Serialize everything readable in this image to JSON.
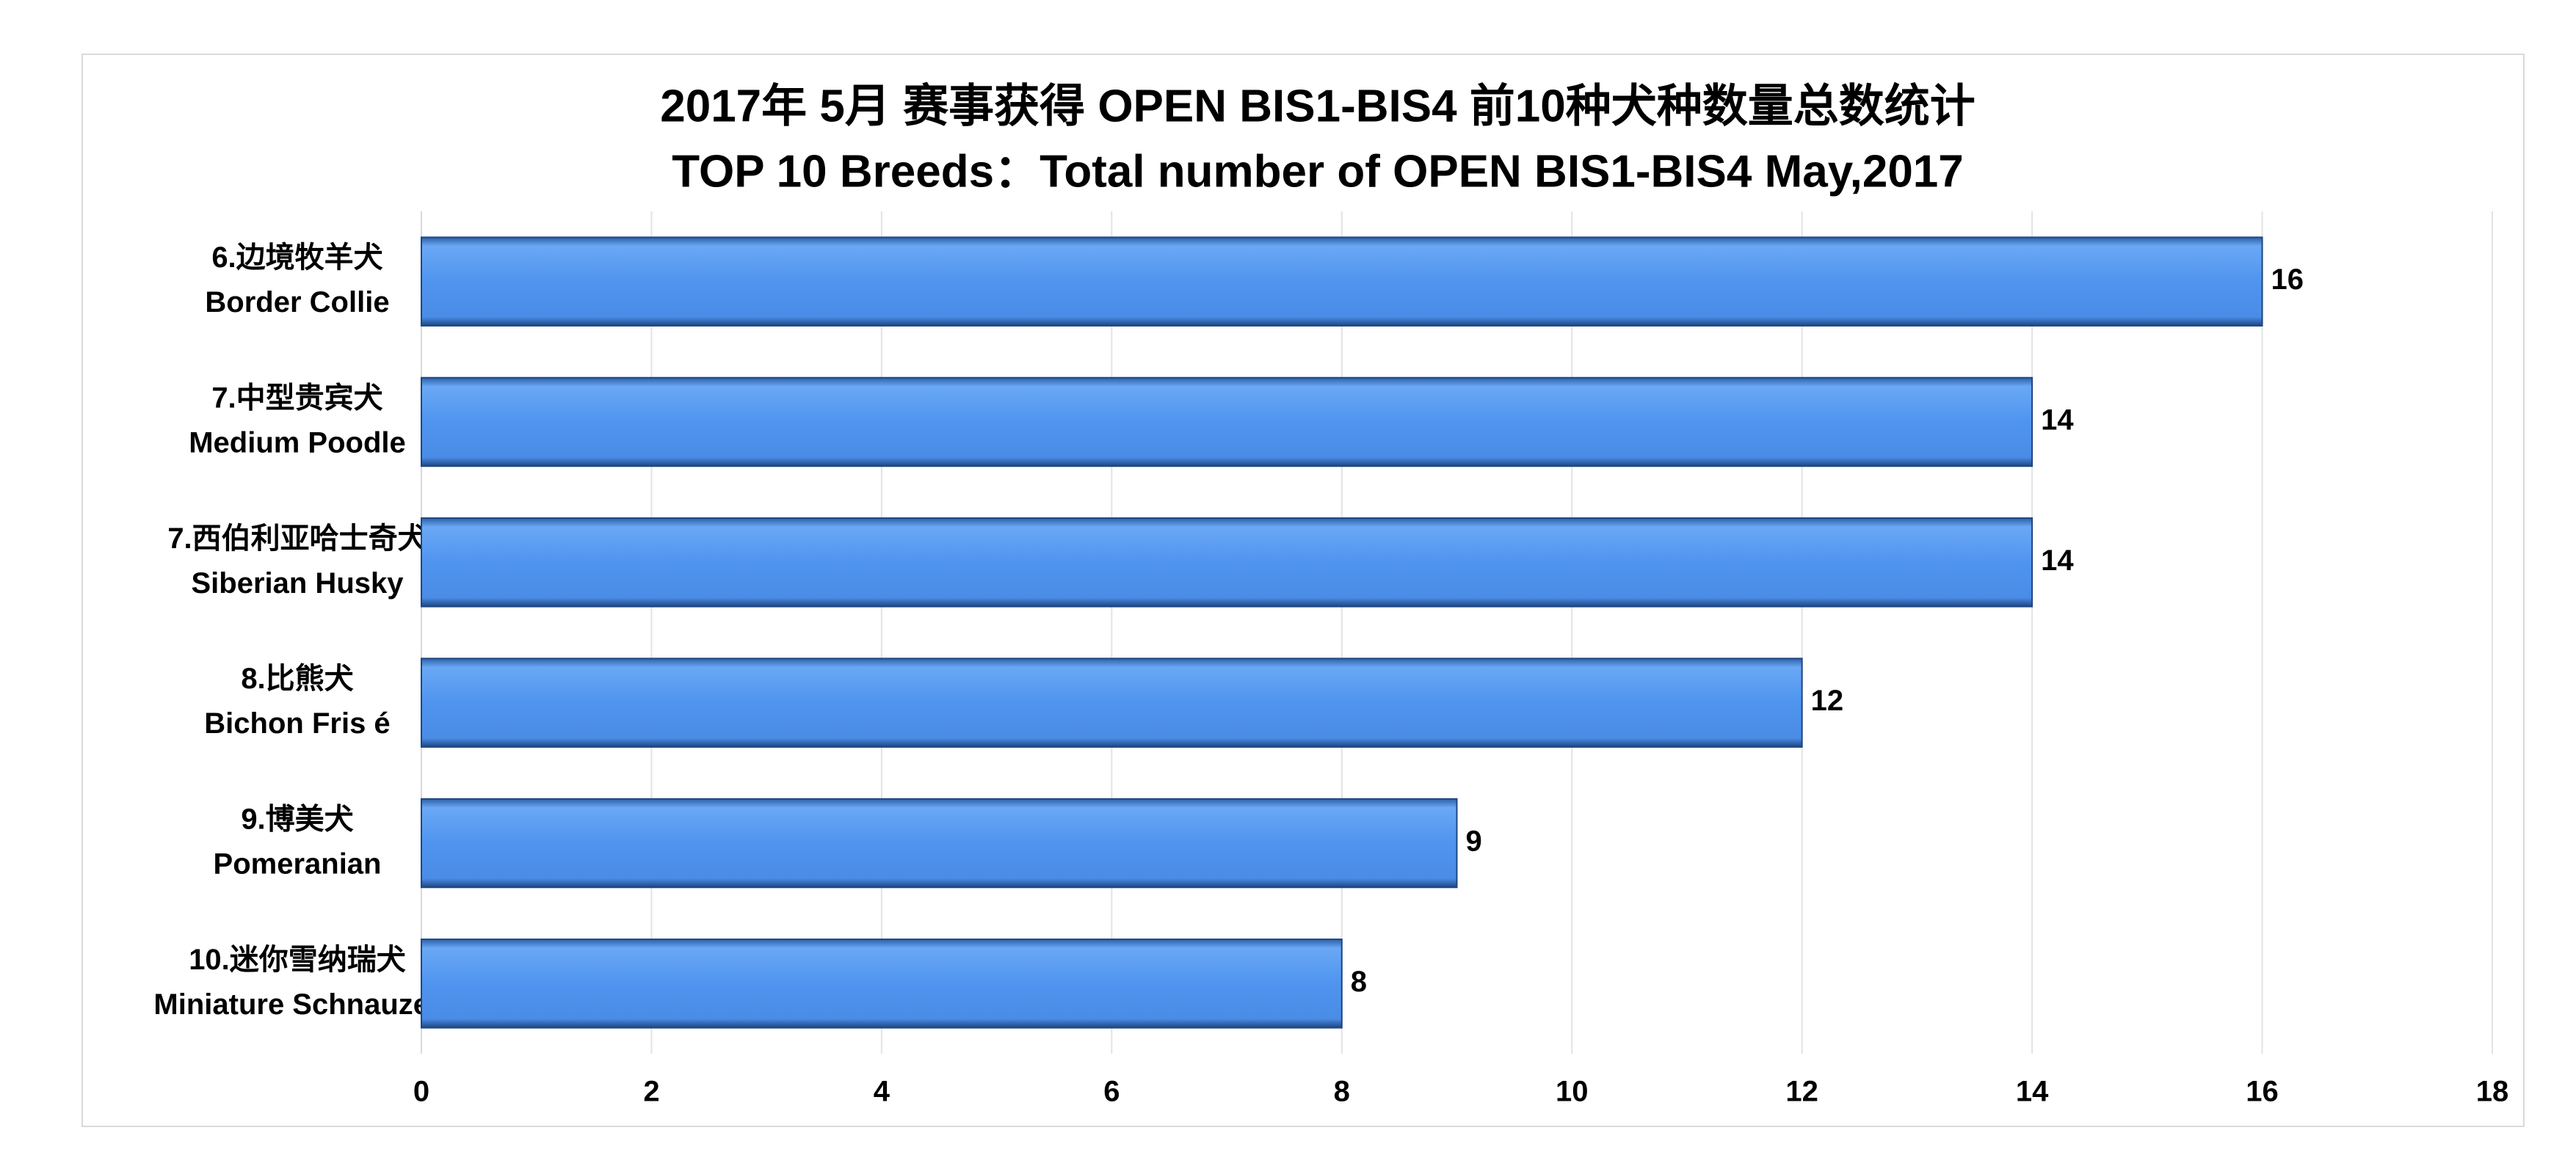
{
  "chart_data": {
    "type": "bar",
    "orientation": "horizontal",
    "title": "2017年 5月 赛事获得 OPEN BIS1-BIS4 前10种犬种数量总数统计",
    "subtitle": "TOP 10 Breeds：Total number of OPEN BIS1-BIS4 May,2017",
    "categories": [
      [
        "6.边境牧羊犬",
        "Border Collie"
      ],
      [
        "7.中型贵宾犬",
        "Medium Poodle"
      ],
      [
        "7.西伯利亚哈士奇犬",
        "Siberian Husky"
      ],
      [
        "8.比熊犬",
        "Bichon Fris é"
      ],
      [
        "9.博美犬",
        "Pomeranian"
      ],
      [
        "10.迷你雪纳瑞犬",
        "Miniature Schnauzer"
      ]
    ],
    "values": [
      16,
      14,
      14,
      12,
      9,
      8
    ],
    "color": "#4f94ef",
    "value_label_color": "#ff0000",
    "xlim": [
      0,
      18
    ],
    "xticks": [
      0,
      2,
      4,
      6,
      8,
      10,
      12,
      14,
      16,
      18
    ],
    "grid": true
  }
}
